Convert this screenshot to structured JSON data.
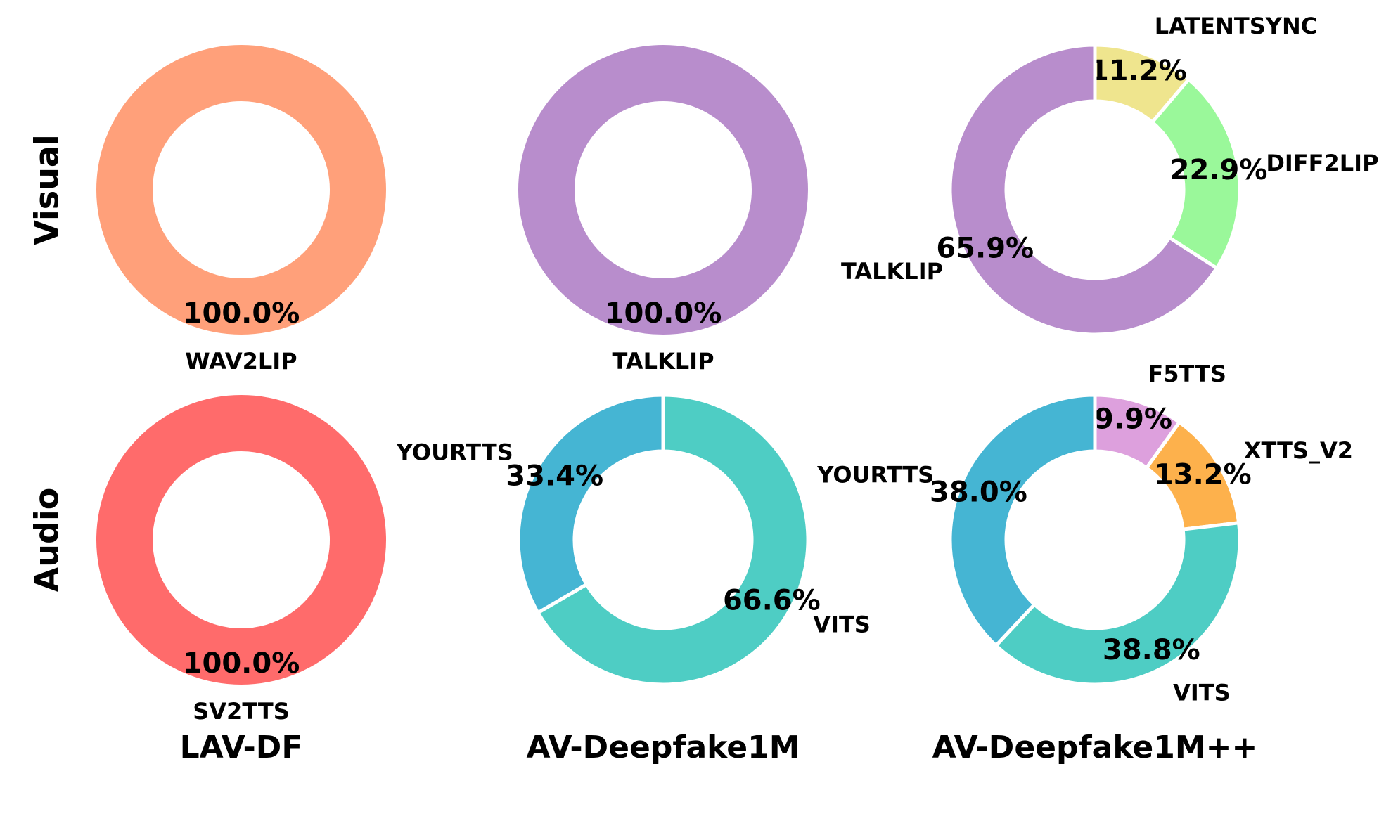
{
  "row_labels": [
    "Visual",
    "Audio"
  ],
  "column_labels": [
    "LAV-DF",
    "AV-Deepfake1M",
    "AV-Deepfake1M++"
  ],
  "chart_data": [
    {
      "type": "pie",
      "row": "Visual",
      "dataset": "LAV-DF",
      "slices": [
        {
          "label": "WAV2LIP",
          "value": 100.0,
          "value_label": "100.0%",
          "color": "#FFA07A"
        }
      ]
    },
    {
      "type": "pie",
      "row": "Visual",
      "dataset": "AV-Deepfake1M",
      "slices": [
        {
          "label": "TALKLIP",
          "value": 100.0,
          "value_label": "100.0%",
          "color": "#B88DCC"
        }
      ]
    },
    {
      "type": "pie",
      "row": "Visual",
      "dataset": "AV-Deepfake1M++",
      "slices": [
        {
          "label": "LATENTSYNC",
          "value": 11.2,
          "value_label": "11.2%",
          "color": "#EFE58E"
        },
        {
          "label": "DIFF2LIP",
          "value": 22.9,
          "value_label": "22.9%",
          "color": "#9AF89A"
        },
        {
          "label": "TALKLIP",
          "value": 65.9,
          "value_label": "65.9%",
          "color": "#B88DCC"
        }
      ]
    },
    {
      "type": "pie",
      "row": "Audio",
      "dataset": "LAV-DF",
      "slices": [
        {
          "label": "SV2TTS",
          "value": 100.0,
          "value_label": "100.0%",
          "color": "#FF6B6B"
        }
      ]
    },
    {
      "type": "pie",
      "row": "Audio",
      "dataset": "AV-Deepfake1M",
      "slices": [
        {
          "label": "VITS",
          "value": 66.6,
          "value_label": "66.6%",
          "color": "#4ECDC4"
        },
        {
          "label": "YOURTTS",
          "value": 33.4,
          "value_label": "33.4%",
          "color": "#45B5D3"
        }
      ]
    },
    {
      "type": "pie",
      "row": "Audio",
      "dataset": "AV-Deepfake1M++",
      "slices": [
        {
          "label": "F5TTS",
          "value": 9.9,
          "value_label": "9.9%",
          "color": "#DDA0DD"
        },
        {
          "label": "XTTS_V2",
          "value": 13.2,
          "value_label": "13.2%",
          "color": "#FDB14C"
        },
        {
          "label": "VITS",
          "value": 38.8,
          "value_label": "38.8%",
          "color": "#4ECDC4"
        },
        {
          "label": "YOURTTS",
          "value": 38.0,
          "value_label": "38.0%",
          "color": "#45B5D3"
        }
      ]
    }
  ]
}
